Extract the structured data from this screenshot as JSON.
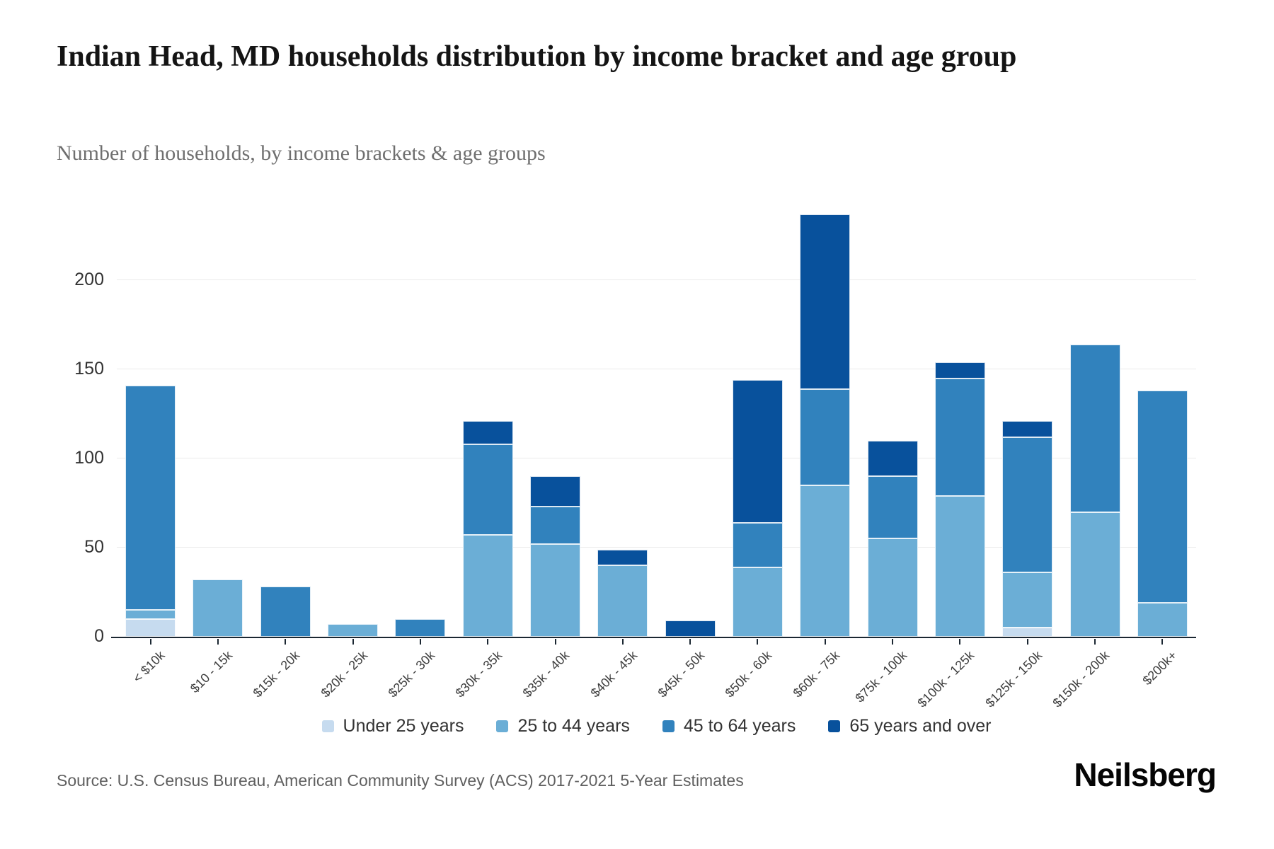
{
  "header": {
    "title": "Indian Head, MD households distribution by income bracket and age group",
    "subtitle": "Number of households, by income brackets & age groups"
  },
  "footer": {
    "source": "Source: U.S. Census Bureau, American Community Survey (ACS) 2017-2021 5-Year Estimates",
    "brand": "Neilsberg"
  },
  "chart_data": {
    "type": "bar",
    "stacked": true,
    "title": "Indian Head, MD households distribution by income bracket and age group",
    "xlabel": "",
    "ylabel": "Number of households",
    "categories": [
      "< $10k",
      "$10 - 15k",
      "$15k - 20k",
      "$20k - 25k",
      "$25k - 30k",
      "$30k - 35k",
      "$35k - 40k",
      "$40k - 45k",
      "$45k - 50k",
      "$50k - 60k",
      "$60k - 75k",
      "$75k - 100k",
      "$100k - 125k",
      "$125k - 150k",
      "$150k - 200k",
      "$200k+"
    ],
    "series": [
      {
        "name": "Under 25 years",
        "color": "#c6dbef",
        "values": [
          10,
          0,
          0,
          0,
          0,
          0,
          0,
          0,
          0,
          0,
          0,
          0,
          0,
          5,
          0,
          0
        ]
      },
      {
        "name": "25 to 44 years",
        "color": "#6baed6",
        "values": [
          5,
          32,
          0,
          7,
          0,
          57,
          52,
          40,
          0,
          39,
          85,
          55,
          79,
          31,
          70,
          19
        ]
      },
      {
        "name": "45 to 64 years",
        "color": "#3182bd",
        "values": [
          126,
          0,
          28,
          0,
          10,
          51,
          21,
          0,
          0,
          25,
          54,
          35,
          66,
          76,
          94,
          119
        ]
      },
      {
        "name": "65 years and over",
        "color": "#08519c",
        "values": [
          0,
          0,
          0,
          0,
          0,
          13,
          17,
          9,
          9,
          80,
          98,
          20,
          9,
          9,
          0,
          0
        ]
      }
    ],
    "totals": [
      141,
      32,
      28,
      7,
      10,
      121,
      90,
      49,
      9,
      144,
      237,
      110,
      154,
      121,
      164,
      138
    ],
    "ylim": [
      0,
      254
    ],
    "yticks": [
      0,
      50,
      100,
      150,
      200
    ],
    "grid": true,
    "legend_position": "bottom"
  }
}
